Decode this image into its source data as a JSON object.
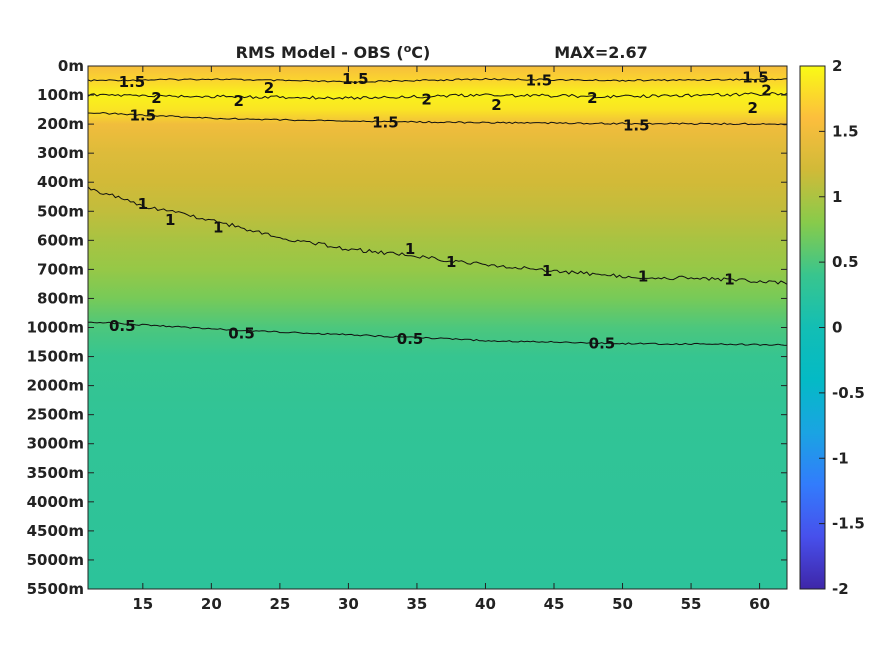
{
  "chart_data": {
    "type": "heatmap",
    "title": "RMS Model - OBS (°C)",
    "title_main": "RMS Model - OBS (",
    "title_sup": "o",
    "title_unit": "C)",
    "annotation": "MAX=2.67",
    "x_ticks": [
      "15",
      "20",
      "25",
      "30",
      "35",
      "40",
      "45",
      "50",
      "55",
      "60"
    ],
    "x_tick_values": [
      15,
      20,
      25,
      30,
      35,
      40,
      45,
      50,
      55,
      60
    ],
    "xlim": [
      11,
      62
    ],
    "y_ticks": [
      "0m",
      "100m",
      "200m",
      "300m",
      "400m",
      "500m",
      "600m",
      "700m",
      "800m",
      "1000m",
      "1500m",
      "2000m",
      "2500m",
      "3000m",
      "3500m",
      "4000m",
      "4500m",
      "5000m",
      "5500m"
    ],
    "colorbar": {
      "ticks": [
        "2",
        "1.5",
        "1",
        "0.5",
        "0",
        "-0.5",
        "-1",
        "-1.5",
        "-2"
      ],
      "range": [
        -2,
        2
      ],
      "colormap": "parula"
    },
    "depth_profile": [
      {
        "depth_index": 0,
        "value": 1.55
      },
      {
        "depth_index": 0.5,
        "value": 1.75
      },
      {
        "depth_index": 1,
        "value": 1.95
      },
      {
        "depth_index": 1.5,
        "value": 1.85
      },
      {
        "depth_index": 2,
        "value": 1.5
      },
      {
        "depth_index": 3,
        "value": 1.32
      },
      {
        "depth_index": 4,
        "value": 1.22
      },
      {
        "depth_index": 5,
        "value": 1.12
      },
      {
        "depth_index": 6,
        "value": 0.98
      },
      {
        "depth_index": 7,
        "value": 0.88
      },
      {
        "depth_index": 8,
        "value": 0.72
      },
      {
        "depth_index": 9,
        "value": 0.5
      },
      {
        "depth_index": 10,
        "value": 0.38
      },
      {
        "depth_index": 12,
        "value": 0.32
      },
      {
        "depth_index": 15,
        "value": 0.3
      },
      {
        "depth_index": 18,
        "value": 0.27
      }
    ],
    "contours": [
      {
        "level": 1.5,
        "label": "1.5",
        "points": [
          [
            11,
            0.5
          ],
          [
            20,
            0.45
          ],
          [
            30,
            0.55
          ],
          [
            40,
            0.45
          ],
          [
            50,
            0.5
          ],
          [
            62,
            0.45
          ]
        ]
      },
      {
        "level": 2,
        "label": "2",
        "points": [
          [
            11,
            1
          ],
          [
            20,
            1.05
          ],
          [
            30,
            1.1
          ],
          [
            40,
            1.0
          ],
          [
            50,
            1.05
          ],
          [
            62,
            0.95
          ]
        ]
      },
      {
        "level": 1.5,
        "label": "1.5",
        "points": [
          [
            11,
            1.6
          ],
          [
            20,
            1.8
          ],
          [
            30,
            1.9
          ],
          [
            40,
            1.95
          ],
          [
            50,
            1.98
          ],
          [
            62,
            2.0
          ]
        ]
      },
      {
        "level": 1,
        "label": "1",
        "points": [
          [
            11,
            4.2
          ],
          [
            15,
            4.8
          ],
          [
            20,
            5.3
          ],
          [
            25,
            5.9
          ],
          [
            30,
            6.3
          ],
          [
            35,
            6.55
          ],
          [
            40,
            6.85
          ],
          [
            45,
            7.05
          ],
          [
            50,
            7.25
          ],
          [
            55,
            7.3
          ],
          [
            62,
            7.45
          ]
        ]
      },
      {
        "level": 0.5,
        "label": "0.5",
        "points": [
          [
            11,
            8.8
          ],
          [
            20,
            9.05
          ],
          [
            30,
            9.25
          ],
          [
            40,
            9.45
          ],
          [
            50,
            9.55
          ],
          [
            62,
            9.6
          ]
        ]
      }
    ],
    "contour_labels": [
      {
        "text": "1.5",
        "x": 14.2,
        "y": 0.55
      },
      {
        "text": "1.5",
        "x": 30.5,
        "y": 0.45
      },
      {
        "text": "1.5",
        "x": 43.9,
        "y": 0.5
      },
      {
        "text": "1.5",
        "x": 59.7,
        "y": 0.4
      },
      {
        "text": "2",
        "x": 16.0,
        "y": 1.1
      },
      {
        "text": "2",
        "x": 24.2,
        "y": 0.75
      },
      {
        "text": "2",
        "x": 22.0,
        "y": 1.2
      },
      {
        "text": "2",
        "x": 35.7,
        "y": 1.15
      },
      {
        "text": "2",
        "x": 40.8,
        "y": 1.35
      },
      {
        "text": "2",
        "x": 47.8,
        "y": 1.1
      },
      {
        "text": "2",
        "x": 60.5,
        "y": 0.85
      },
      {
        "text": "2",
        "x": 59.5,
        "y": 1.45
      },
      {
        "text": "1.5",
        "x": 15.0,
        "y": 1.7
      },
      {
        "text": "1.5",
        "x": 32.7,
        "y": 1.95
      },
      {
        "text": "1.5",
        "x": 51.0,
        "y": 2.05
      },
      {
        "text": "1",
        "x": 15.0,
        "y": 4.75
      },
      {
        "text": "1",
        "x": 17.0,
        "y": 5.3
      },
      {
        "text": "1",
        "x": 20.5,
        "y": 5.55
      },
      {
        "text": "1",
        "x": 34.5,
        "y": 6.3
      },
      {
        "text": "1",
        "x": 37.5,
        "y": 6.75
      },
      {
        "text": "1",
        "x": 44.5,
        "y": 7.05
      },
      {
        "text": "1",
        "x": 51.5,
        "y": 7.25
      },
      {
        "text": "1",
        "x": 57.8,
        "y": 7.35
      },
      {
        "text": "0.5",
        "x": 13.5,
        "y": 8.95
      },
      {
        "text": "0.5",
        "x": 22.2,
        "y": 9.2
      },
      {
        "text": "0.5",
        "x": 34.5,
        "y": 9.4
      },
      {
        "text": "0.5",
        "x": 48.5,
        "y": 9.55
      }
    ]
  }
}
